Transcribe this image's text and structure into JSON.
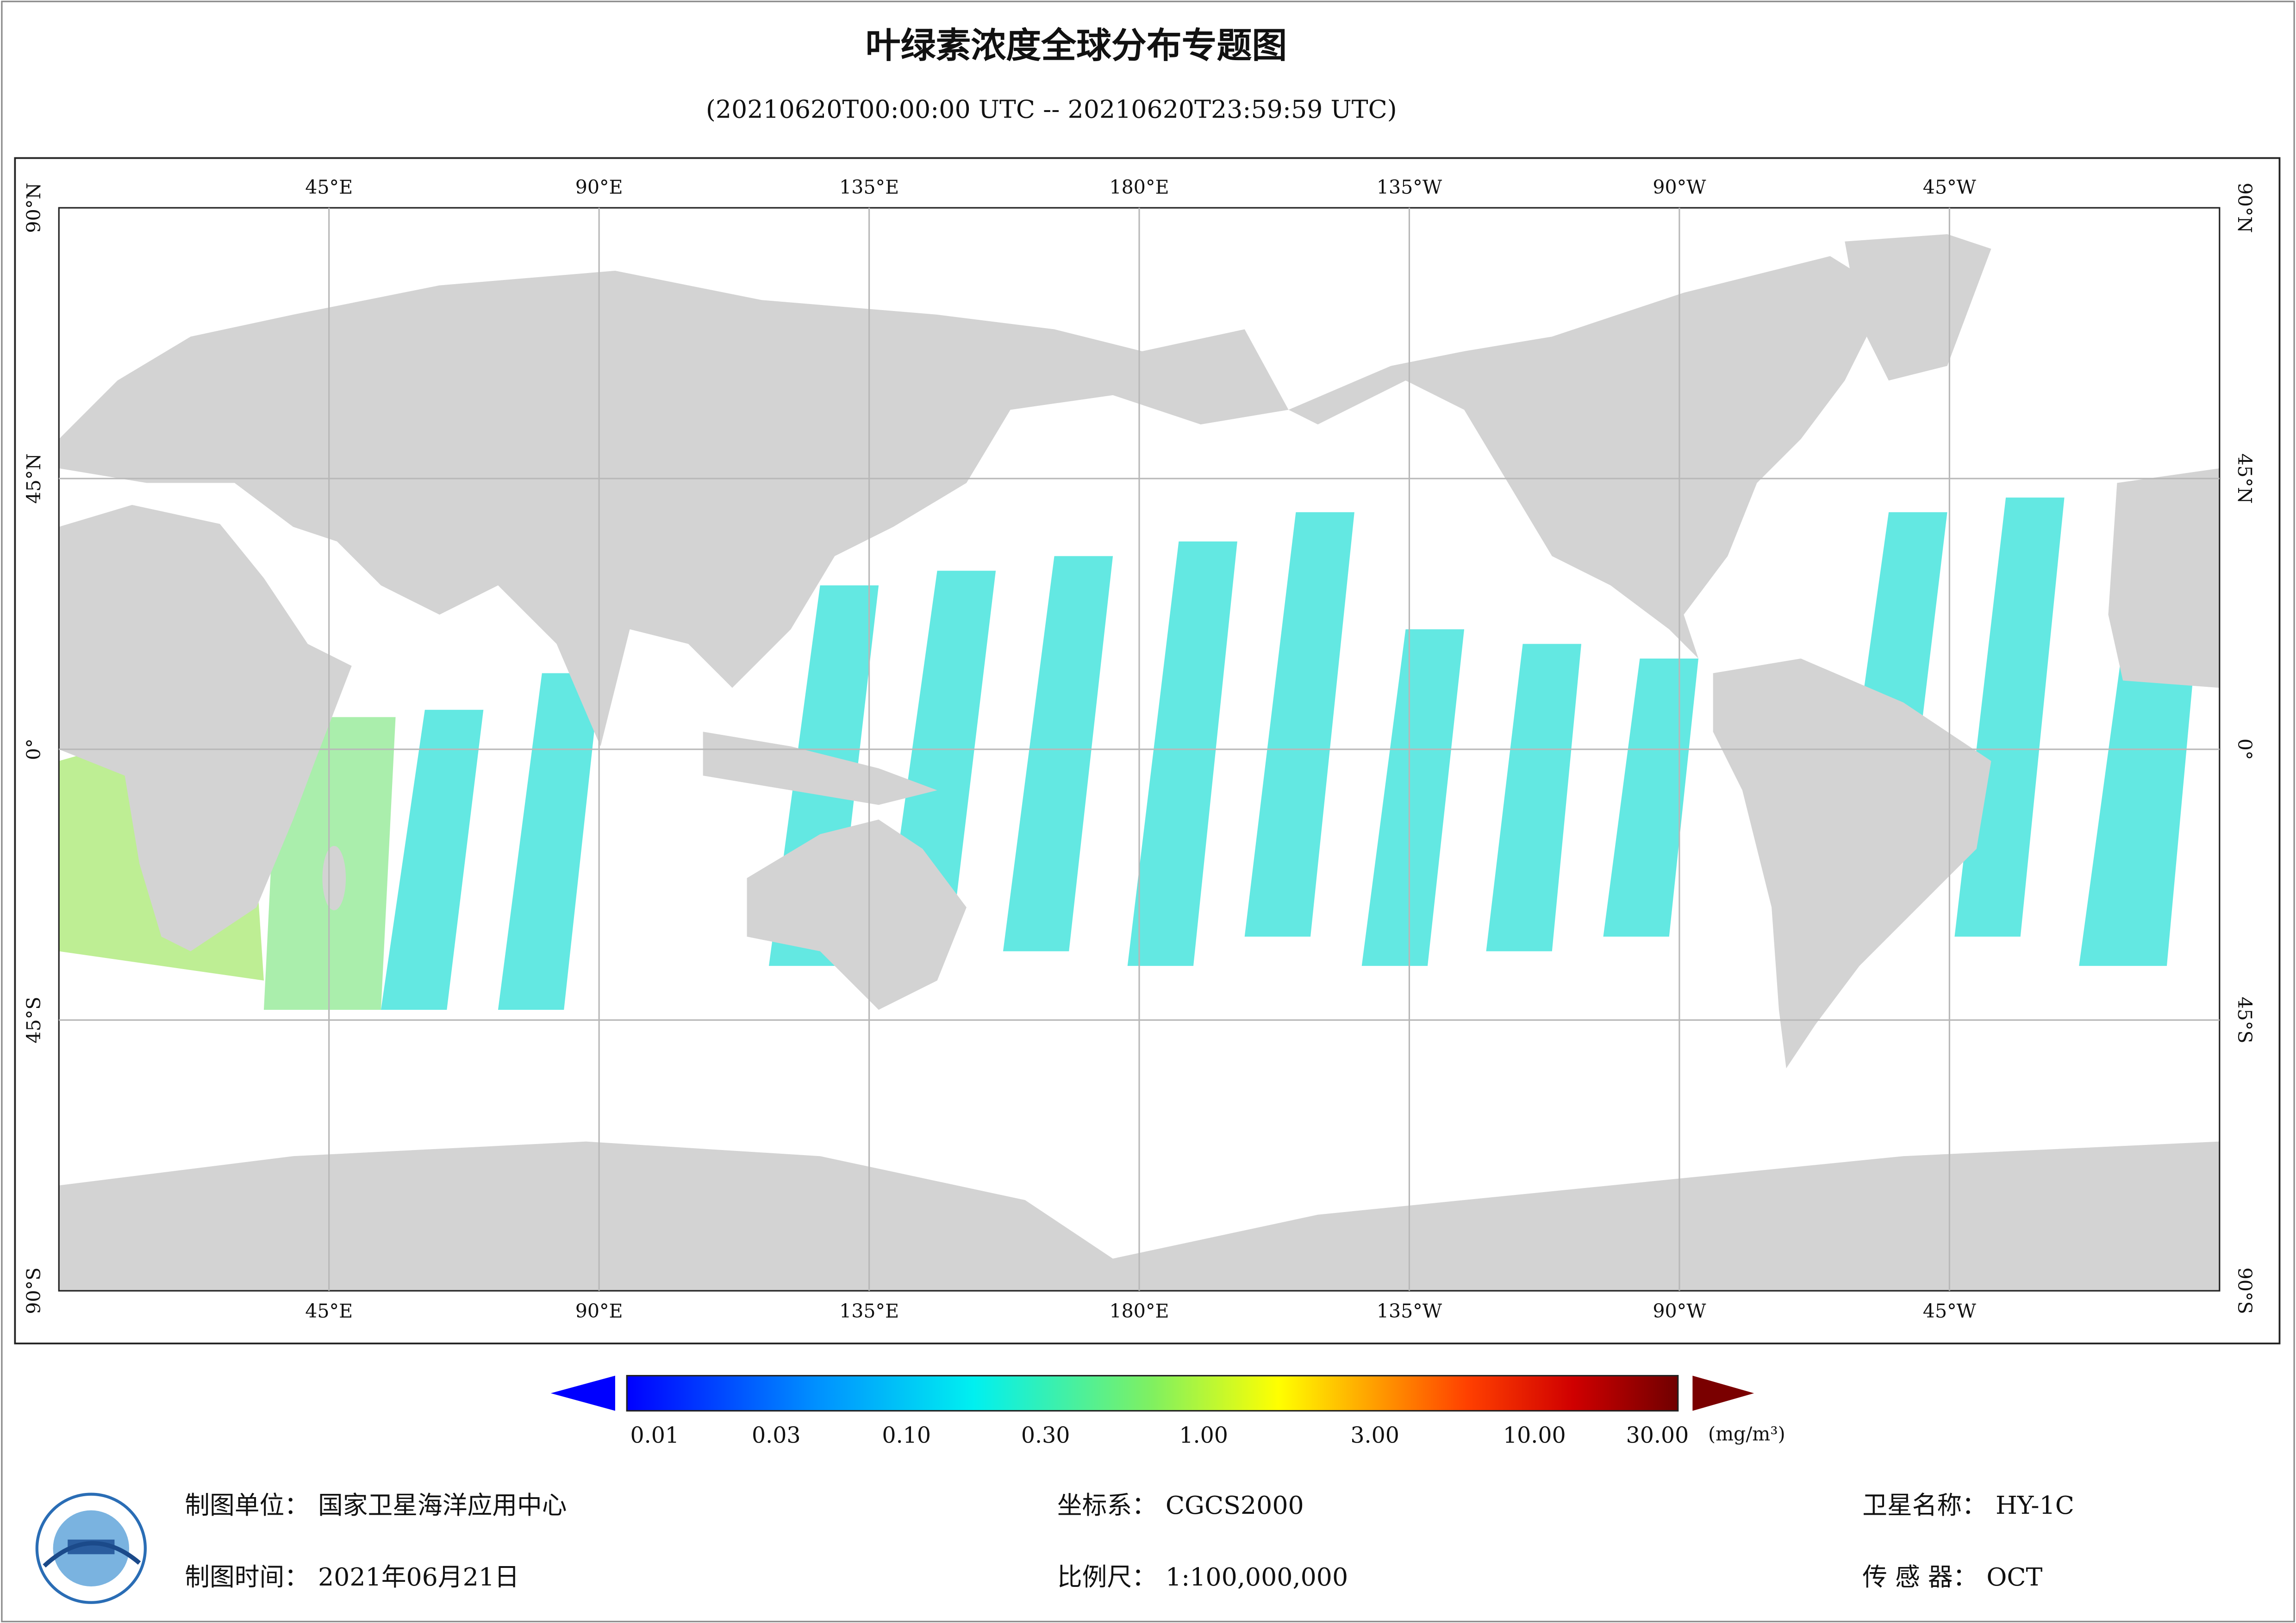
{
  "title": "叶绿素浓度全球分布专题图",
  "subtitle": "(20210620T00:00:00 UTC -- 20210620T23:59:59 UTC)",
  "map": {
    "lon_labels": [
      "45°E",
      "90°E",
      "135°E",
      "180°E",
      "135°W",
      "90°W",
      "45°W"
    ],
    "lat_labels": [
      "90°N",
      "45°N",
      "0°",
      "45°S",
      "90°S"
    ]
  },
  "colorbar": {
    "ticks": [
      "0.01",
      "0.03",
      "0.10",
      "0.30",
      "1.00",
      "3.00",
      "10.00",
      "30.00"
    ],
    "unit": "(mg/m³)"
  },
  "footer": [
    {
      "label": "制图单位：",
      "value": "国家卫星海洋应用中心"
    },
    {
      "label": "坐标系：",
      "value": "CGCS2000"
    },
    {
      "label": "卫星名称：",
      "value": "HY-1C"
    },
    {
      "label": "制图时间：",
      "value": "2021年06月21日"
    },
    {
      "label": "比例尺：",
      "value": "1:100,000,000"
    },
    {
      "label": "传 感 器：",
      "value": "OCT"
    }
  ]
}
